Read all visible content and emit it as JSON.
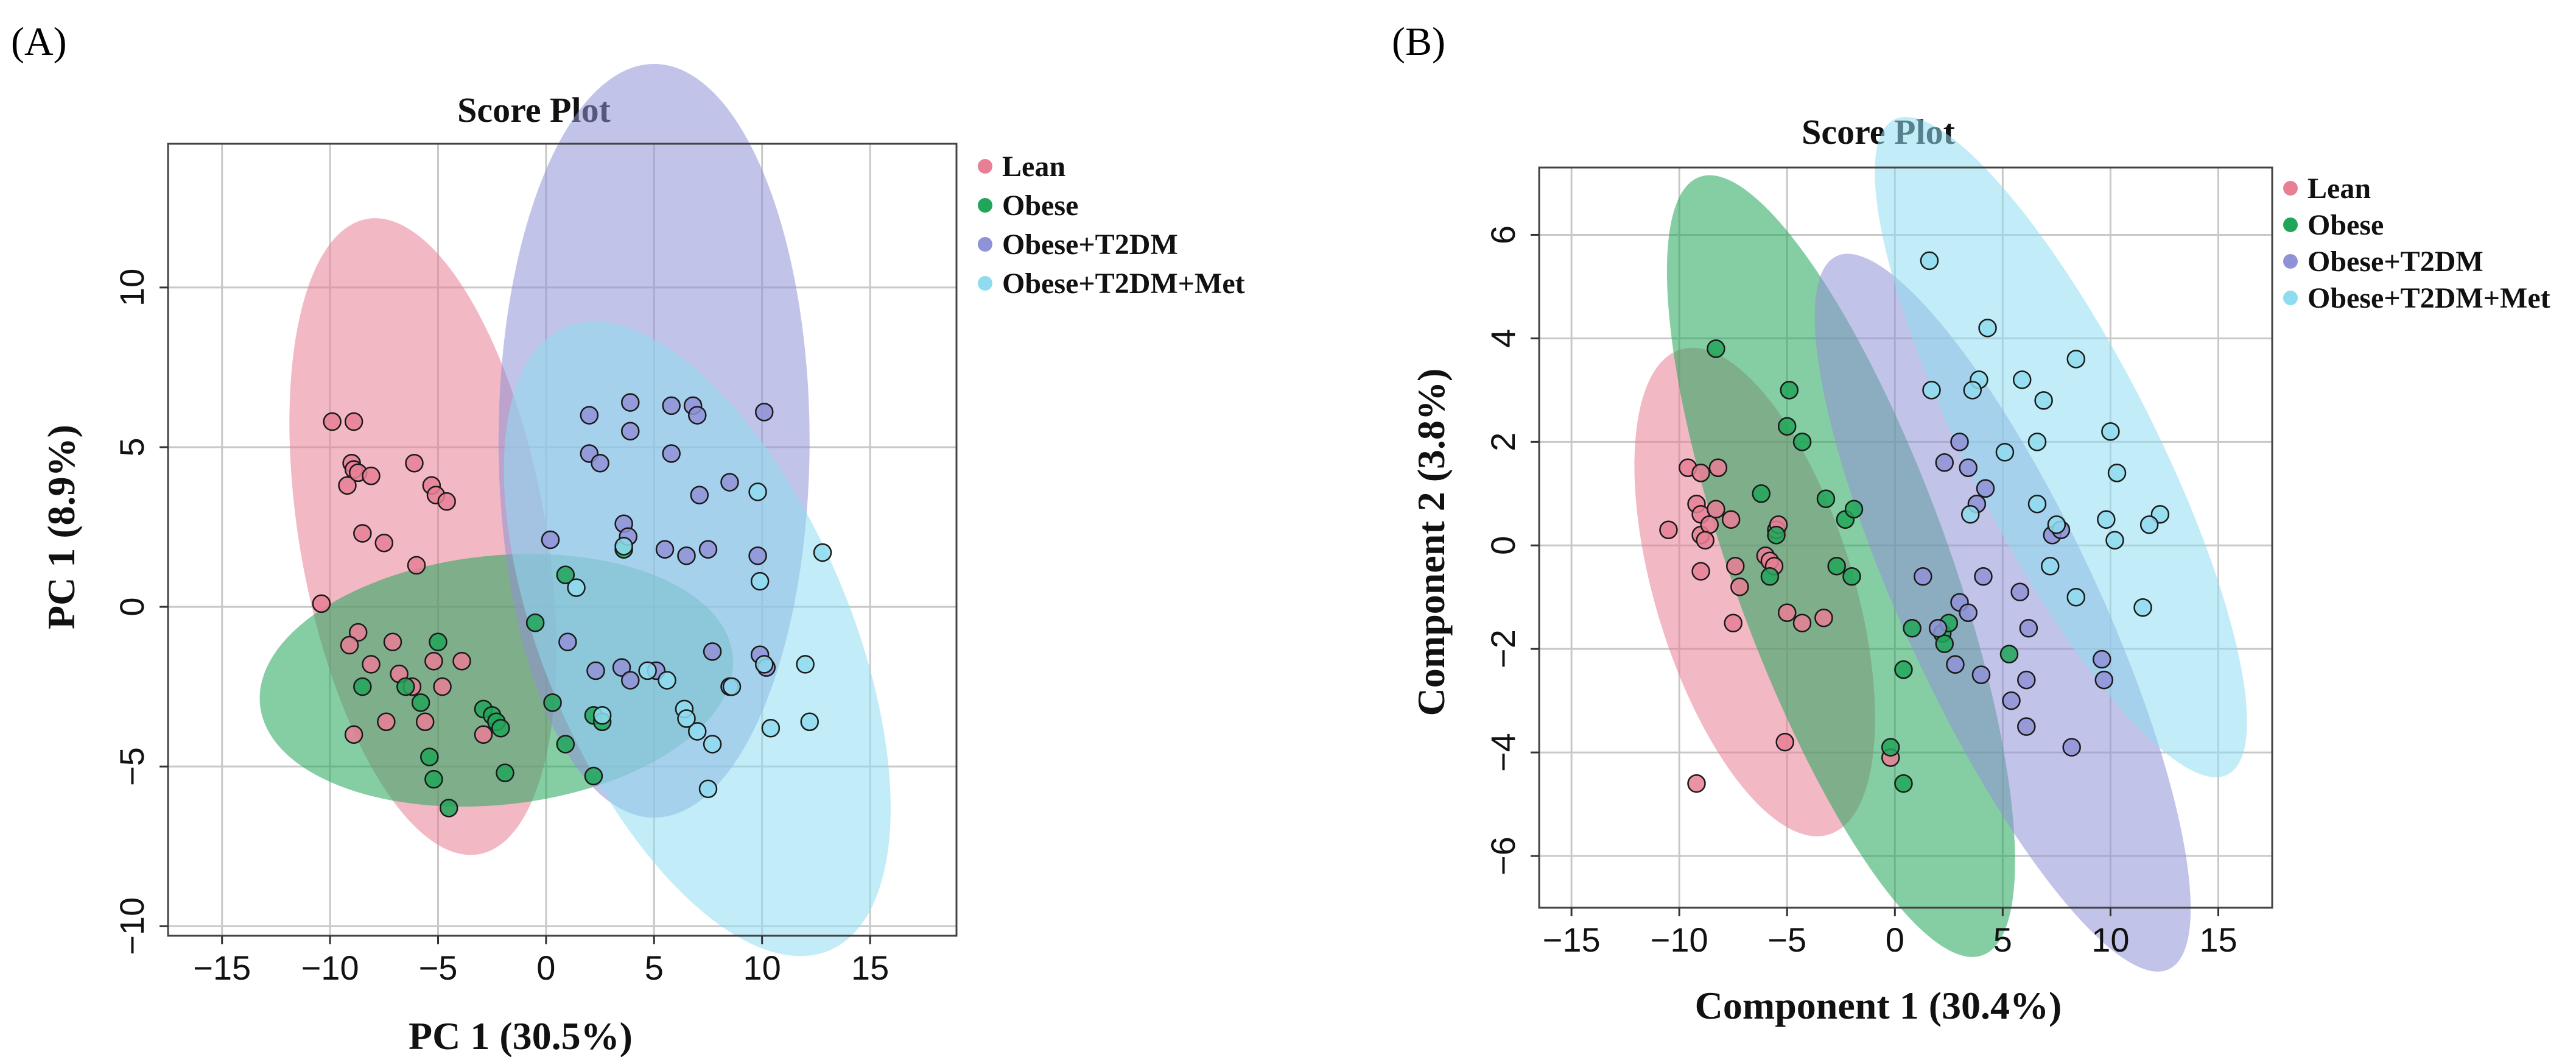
{
  "panels": [
    {
      "label": "(A)",
      "title": "Score Plot",
      "xlabel": "PC 1 (30.5%)",
      "ylabel": "PC 1 (8.9%)"
    },
    {
      "label": "(B)",
      "title": "Score Plot",
      "xlabel": "Component 1 (30.4%)",
      "ylabel": "Component 2 (3.8%)"
    }
  ],
  "legend": [
    {
      "name": "Lean",
      "color": "#e87f95"
    },
    {
      "name": "Obese",
      "color": "#21a659"
    },
    {
      "name": "Obese+T2DM",
      "color": "#8f92d6"
    },
    {
      "name": "Obese+T2DM+Met",
      "color": "#8fdcf0"
    }
  ],
  "chart_data": [
    {
      "type": "scatter",
      "title": "Score Plot",
      "xlabel": "PC 1 (30.5%)",
      "ylabel": "PC 1 (8.9%)",
      "xlim": [
        -17.5,
        19
      ],
      "ylim": [
        -10.3,
        14.5
      ],
      "xticks": [
        -15,
        -10,
        -5,
        0,
        5,
        10,
        15
      ],
      "yticks": [
        -10,
        -5,
        0,
        5,
        10
      ],
      "legend_position": "right",
      "series": [
        {
          "name": "Lean",
          "color": "#e87f95",
          "ellipse": {
            "cx": -5.7,
            "cy": 2.2,
            "rx": 5.7,
            "ry": 10.1,
            "angle": -10
          },
          "points": [
            [
              -9.9,
              5.8
            ],
            [
              -8.9,
              5.8
            ],
            [
              -9.0,
              4.5
            ],
            [
              -8.9,
              4.3
            ],
            [
              -9.2,
              3.8
            ],
            [
              -8.7,
              4.2
            ],
            [
              -8.1,
              4.1
            ],
            [
              -6.1,
              4.5
            ],
            [
              -5.3,
              3.8
            ],
            [
              -5.1,
              3.5
            ],
            [
              -4.6,
              3.3
            ],
            [
              -8.5,
              2.3
            ],
            [
              -7.5,
              2.0
            ],
            [
              -6.0,
              1.3
            ],
            [
              -10.4,
              0.1
            ],
            [
              -8.7,
              -0.8
            ],
            [
              -7.1,
              -1.1
            ],
            [
              -9.1,
              -1.2
            ],
            [
              -8.1,
              -1.8
            ],
            [
              -5.2,
              -1.7
            ],
            [
              -6.8,
              -2.1
            ],
            [
              -3.9,
              -1.7
            ],
            [
              -8.9,
              -4.0
            ],
            [
              -7.4,
              -3.6
            ],
            [
              -2.9,
              -4.0
            ],
            [
              -4.8,
              -2.5
            ],
            [
              -5.6,
              -3.6
            ],
            [
              -6.2,
              -2.5
            ]
          ]
        },
        {
          "name": "Obese",
          "color": "#21a659",
          "ellipse": {
            "cx": -2.3,
            "cy": -2.3,
            "rx": 11.0,
            "ry": 3.9,
            "angle": -6
          },
          "points": [
            [
              -5.0,
              -1.1
            ],
            [
              -8.5,
              -2.5
            ],
            [
              -6.5,
              -2.5
            ],
            [
              -5.8,
              -3.0
            ],
            [
              -5.4,
              -4.7
            ],
            [
              -5.2,
              -5.4
            ],
            [
              -4.5,
              -6.3
            ],
            [
              -2.9,
              -3.2
            ],
            [
              -2.5,
              -3.4
            ],
            [
              -2.3,
              -3.6
            ],
            [
              -2.1,
              -3.8
            ],
            [
              -1.9,
              -5.2
            ],
            [
              -0.5,
              -0.5
            ],
            [
              0.3,
              -3.0
            ],
            [
              0.9,
              -4.3
            ],
            [
              0.9,
              1.0
            ],
            [
              2.2,
              -3.4
            ],
            [
              2.2,
              -5.3
            ],
            [
              2.6,
              -3.6
            ],
            [
              3.6,
              1.8
            ]
          ]
        },
        {
          "name": "Obese+T2DM",
          "color": "#8f92d6",
          "ellipse": {
            "cx": 5.0,
            "cy": 5.2,
            "rx": 7.2,
            "ry": 11.8,
            "angle": 0
          },
          "points": [
            [
              2.0,
              6.0
            ],
            [
              3.9,
              6.4
            ],
            [
              5.8,
              6.3
            ],
            [
              6.8,
              6.3
            ],
            [
              7.0,
              6.0
            ],
            [
              10.1,
              6.1
            ],
            [
              2.0,
              4.8
            ],
            [
              2.5,
              4.5
            ],
            [
              3.9,
              5.5
            ],
            [
              5.8,
              4.8
            ],
            [
              7.1,
              3.5
            ],
            [
              8.5,
              3.9
            ],
            [
              0.2,
              2.1
            ],
            [
              3.6,
              2.6
            ],
            [
              3.8,
              2.2
            ],
            [
              5.5,
              1.8
            ],
            [
              6.5,
              1.6
            ],
            [
              7.5,
              1.8
            ],
            [
              9.8,
              1.6
            ],
            [
              2.3,
              -2.0
            ],
            [
              3.5,
              -1.9
            ],
            [
              5.1,
              -2.0
            ],
            [
              7.7,
              -1.4
            ],
            [
              8.5,
              -2.5
            ],
            [
              9.9,
              -1.5
            ],
            [
              1.0,
              -1.1
            ],
            [
              3.9,
              -2.3
            ],
            [
              10.2,
              -1.9
            ]
          ]
        },
        {
          "name": "Obese+T2DM+Met",
          "color": "#8fdcf0",
          "ellipse": {
            "cx": 7.0,
            "cy": -1.0,
            "rx": 7.1,
            "ry": 10.6,
            "angle": -23
          },
          "points": [
            [
              1.4,
              0.6
            ],
            [
              3.6,
              1.9
            ],
            [
              9.8,
              3.6
            ],
            [
              12.8,
              1.7
            ],
            [
              9.9,
              0.8
            ],
            [
              12.0,
              -1.8
            ],
            [
              12.2,
              -3.6
            ],
            [
              10.4,
              -3.8
            ],
            [
              7.7,
              -4.3
            ],
            [
              7.5,
              -5.7
            ],
            [
              7.0,
              -3.9
            ],
            [
              6.4,
              -3.2
            ],
            [
              6.5,
              -3.5
            ],
            [
              8.6,
              -2.5
            ],
            [
              10.1,
              -1.8
            ],
            [
              4.7,
              -2.0
            ],
            [
              5.6,
              -2.3
            ],
            [
              2.6,
              -3.4
            ]
          ]
        }
      ]
    },
    {
      "type": "scatter",
      "title": "Score Plot",
      "xlabel": "Component 1 (30.4%)",
      "ylabel": "Component 2 (3.8%)",
      "xlim": [
        -16.5,
        17.5
      ],
      "ylim": [
        -7,
        7.3
      ],
      "xticks": [
        -15,
        -10,
        -5,
        0,
        5,
        10,
        15
      ],
      "yticks": [
        -6,
        -4,
        -2,
        0,
        2,
        4,
        6
      ],
      "legend_position": "right",
      "series": [
        {
          "name": "Lean",
          "color": "#e87f95",
          "ellipse": {
            "cx": -6.5,
            "cy": -0.9,
            "rx": 4.6,
            "ry": 4.9,
            "angle": -17
          },
          "points": [
            [
              -9.6,
              1.5
            ],
            [
              -9.0,
              1.4
            ],
            [
              -8.2,
              1.5
            ],
            [
              -9.2,
              0.8
            ],
            [
              -9.0,
              0.6
            ],
            [
              -9.0,
              0.2
            ],
            [
              -8.6,
              0.4
            ],
            [
              -8.8,
              0.1
            ],
            [
              -10.5,
              0.3
            ],
            [
              -8.3,
              0.7
            ],
            [
              -7.6,
              0.5
            ],
            [
              -7.4,
              -0.4
            ],
            [
              -7.2,
              -0.8
            ],
            [
              -9.0,
              -0.5
            ],
            [
              -7.5,
              -1.5
            ],
            [
              -6.0,
              -0.2
            ],
            [
              -5.8,
              -0.3
            ],
            [
              -5.6,
              -0.4
            ],
            [
              -5.5,
              0.3
            ],
            [
              -5.4,
              0.4
            ],
            [
              -5.0,
              -1.3
            ],
            [
              -4.3,
              -1.5
            ],
            [
              -3.3,
              -1.4
            ],
            [
              -5.1,
              -3.8
            ],
            [
              -9.2,
              -4.6
            ],
            [
              -0.2,
              -4.1
            ]
          ]
        },
        {
          "name": "Obese",
          "color": "#21a659",
          "ellipse": {
            "cx": -2.5,
            "cy": -0.4,
            "rx": 5.0,
            "ry": 8.0,
            "angle": -20
          },
          "points": [
            [
              -8.3,
              3.8
            ],
            [
              -4.9,
              3.0
            ],
            [
              -5.0,
              2.3
            ],
            [
              -4.3,
              2.0
            ],
            [
              -6.2,
              1.0
            ],
            [
              -5.5,
              0.2
            ],
            [
              -5.8,
              -0.6
            ],
            [
              -3.2,
              0.9
            ],
            [
              -2.3,
              0.5
            ],
            [
              -1.9,
              0.7
            ],
            [
              -2.7,
              -0.4
            ],
            [
              -2.0,
              -0.6
            ],
            [
              0.8,
              -1.6
            ],
            [
              2.2,
              -1.7
            ],
            [
              2.3,
              -1.9
            ],
            [
              2.5,
              -1.5
            ],
            [
              0.4,
              -2.4
            ],
            [
              -0.2,
              -3.9
            ],
            [
              0.4,
              -4.6
            ],
            [
              5.3,
              -2.1
            ]
          ]
        },
        {
          "name": "Obese+T2DM",
          "color": "#8f92d6",
          "ellipse": {
            "cx": 5.0,
            "cy": -1.3,
            "rx": 4.5,
            "ry": 7.6,
            "angle": -25
          },
          "points": [
            [
              1.3,
              -0.6
            ],
            [
              2.3,
              1.6
            ],
            [
              3.4,
              1.5
            ],
            [
              3.0,
              2.0
            ],
            [
              3.8,
              0.8
            ],
            [
              4.1,
              -0.6
            ],
            [
              3.0,
              -1.1
            ],
            [
              2.8,
              -2.3
            ],
            [
              3.4,
              -1.3
            ],
            [
              4.0,
              -2.5
            ],
            [
              5.8,
              -0.9
            ],
            [
              6.1,
              -2.6
            ],
            [
              5.4,
              -3.0
            ],
            [
              6.1,
              -3.5
            ],
            [
              8.2,
              -3.9
            ],
            [
              9.6,
              -2.2
            ],
            [
              9.7,
              -2.6
            ],
            [
              7.3,
              0.2
            ],
            [
              7.7,
              0.3
            ],
            [
              4.2,
              1.1
            ],
            [
              6.2,
              -1.6
            ],
            [
              2.0,
              -1.6
            ]
          ]
        },
        {
          "name": "Obese+T2DM+Met",
          "color": "#8fdcf0",
          "ellipse": {
            "cx": 7.7,
            "cy": 1.9,
            "rx": 4.3,
            "ry": 7.1,
            "angle": -27
          },
          "points": [
            [
              1.6,
              5.5
            ],
            [
              4.3,
              4.2
            ],
            [
              8.4,
              3.6
            ],
            [
              3.9,
              3.2
            ],
            [
              3.6,
              3.0
            ],
            [
              5.9,
              3.2
            ],
            [
              6.9,
              2.8
            ],
            [
              1.7,
              3.0
            ],
            [
              10.0,
              2.2
            ],
            [
              10.3,
              1.4
            ],
            [
              6.6,
              2.0
            ],
            [
              5.1,
              1.8
            ],
            [
              6.6,
              0.8
            ],
            [
              7.5,
              0.4
            ],
            [
              12.3,
              0.6
            ],
            [
              11.8,
              0.4
            ],
            [
              10.2,
              0.1
            ],
            [
              9.8,
              0.5
            ],
            [
              3.5,
              0.6
            ],
            [
              7.2,
              -0.4
            ],
            [
              8.4,
              -1.0
            ],
            [
              11.5,
              -1.2
            ]
          ]
        }
      ]
    }
  ]
}
